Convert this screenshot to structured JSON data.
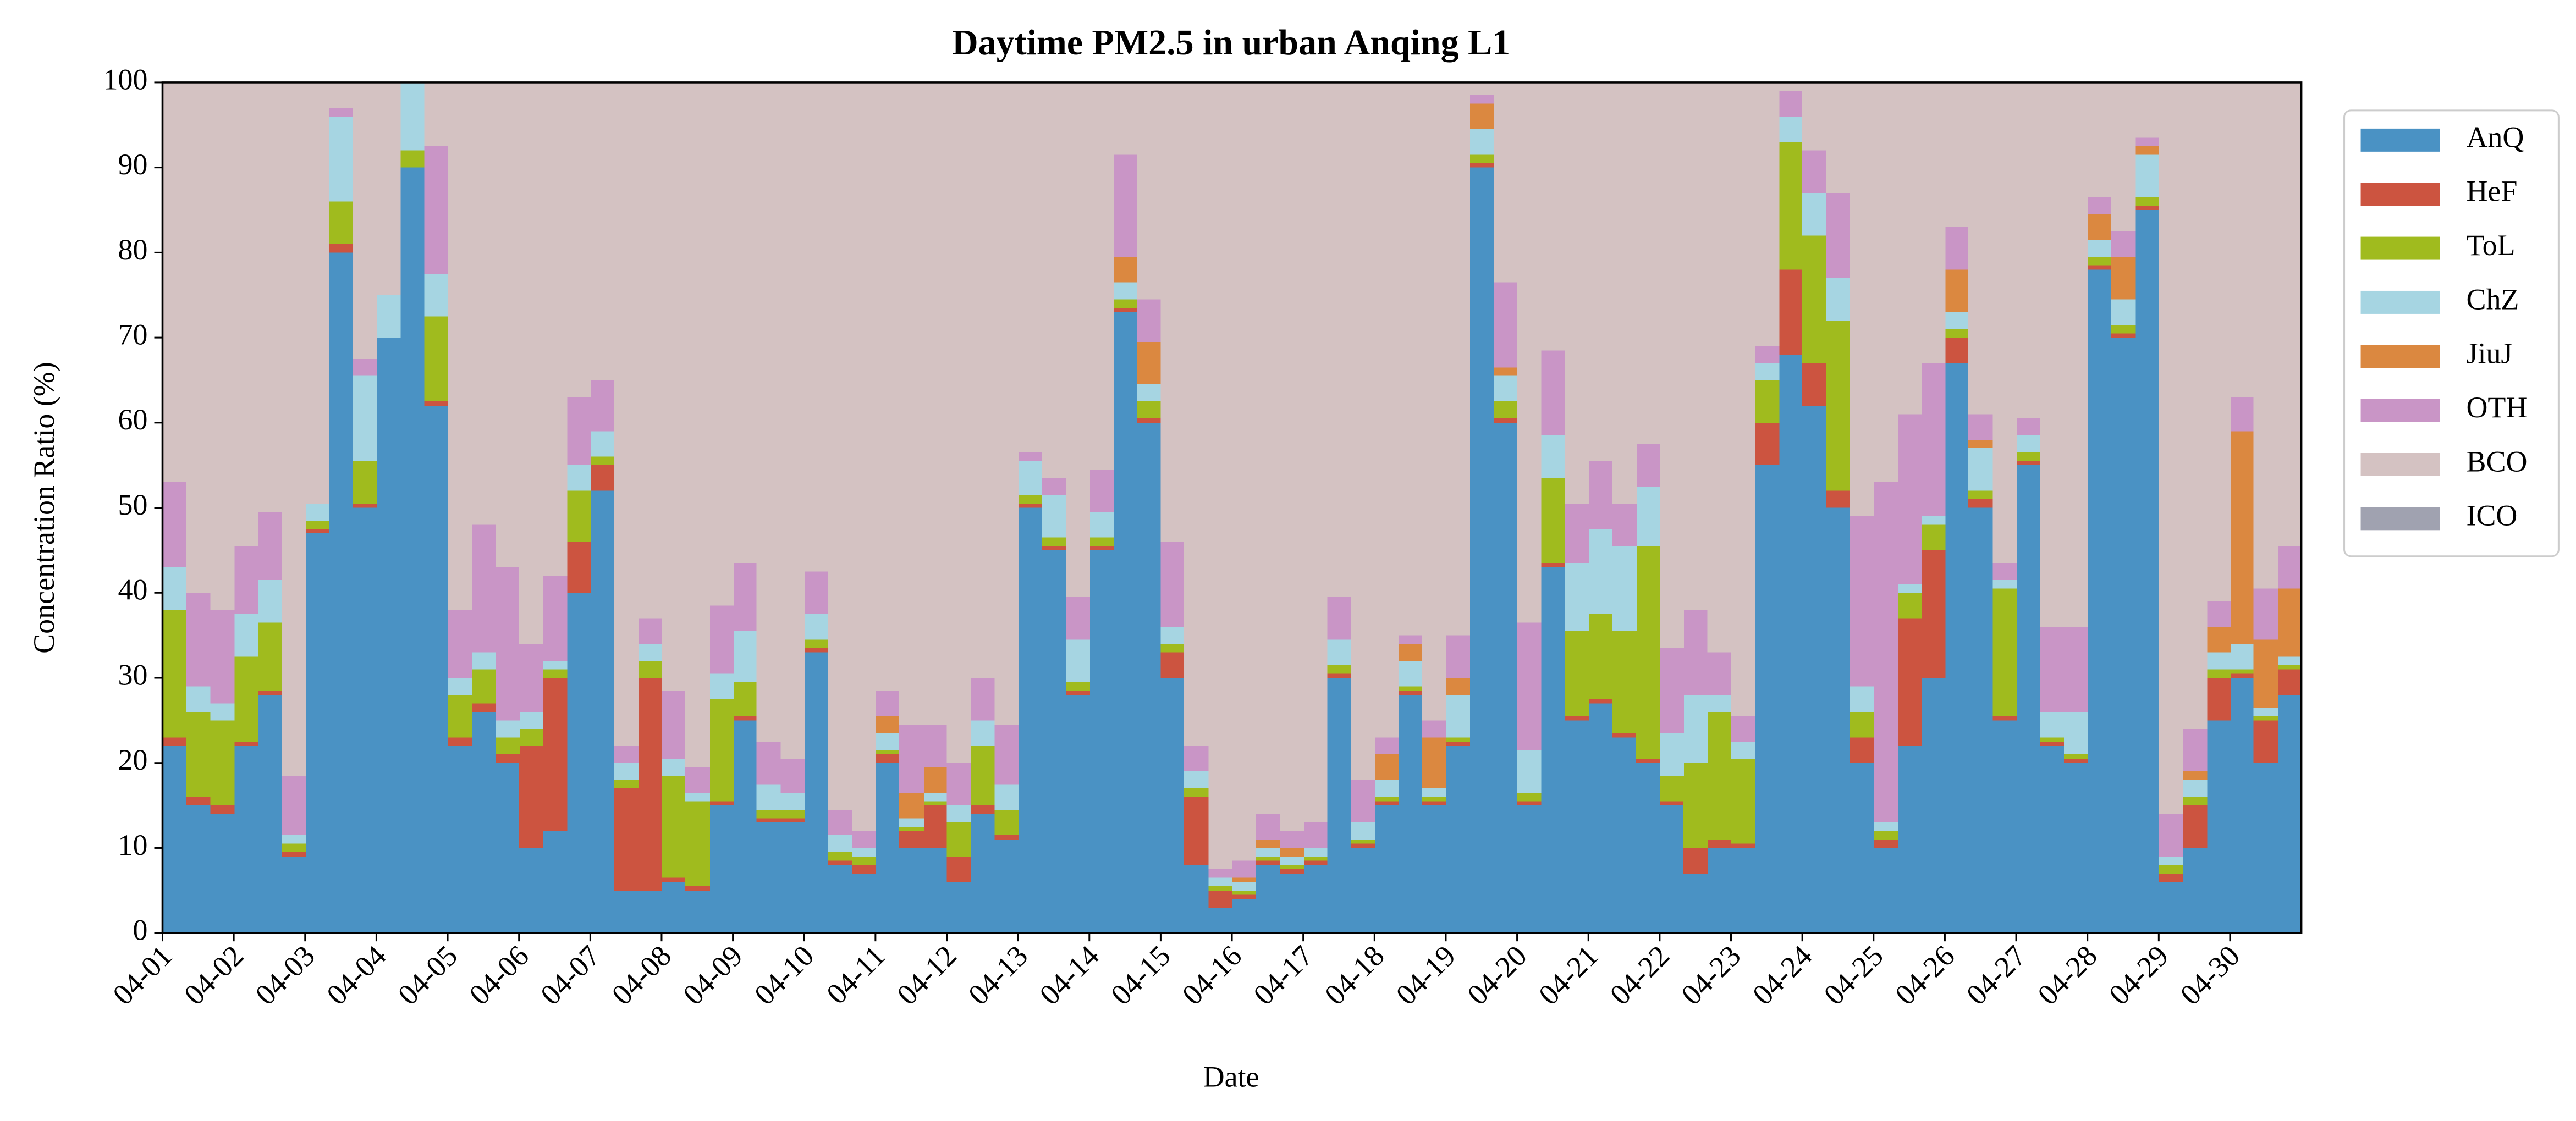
{
  "chart_data": {
    "type": "stacked_step_area",
    "title": "Daytime PM2.5 in urban Anqing L1",
    "xlabel": "Date",
    "ylabel": "Concentration Ratio (%)",
    "xlim": [
      0,
      30
    ],
    "ylim": [
      0,
      100
    ],
    "yticks": [
      0,
      10,
      20,
      30,
      40,
      50,
      60,
      70,
      80,
      90,
      100
    ],
    "xticks": [
      {
        "value": 0,
        "label": "04-01"
      },
      {
        "value": 1,
        "label": "04-02"
      },
      {
        "value": 2,
        "label": "04-03"
      },
      {
        "value": 3,
        "label": "04-04"
      },
      {
        "value": 4,
        "label": "04-05"
      },
      {
        "value": 5,
        "label": "04-06"
      },
      {
        "value": 6,
        "label": "04-07"
      },
      {
        "value": 7,
        "label": "04-08"
      },
      {
        "value": 8,
        "label": "04-09"
      },
      {
        "value": 9,
        "label": "04-10"
      },
      {
        "value": 10,
        "label": "04-11"
      },
      {
        "value": 11,
        "label": "04-12"
      },
      {
        "value": 12,
        "label": "04-13"
      },
      {
        "value": 13,
        "label": "04-14"
      },
      {
        "value": 14,
        "label": "04-15"
      },
      {
        "value": 15,
        "label": "04-16"
      },
      {
        "value": 16,
        "label": "04-17"
      },
      {
        "value": 17,
        "label": "04-18"
      },
      {
        "value": 18,
        "label": "04-19"
      },
      {
        "value": 19,
        "label": "04-20"
      },
      {
        "value": 20,
        "label": "04-21"
      },
      {
        "value": 21,
        "label": "04-22"
      },
      {
        "value": 22,
        "label": "04-23"
      },
      {
        "value": 23,
        "label": "04-24"
      },
      {
        "value": 24,
        "label": "04-25"
      },
      {
        "value": 25,
        "label": "04-26"
      },
      {
        "value": 26,
        "label": "04-27"
      },
      {
        "value": 27,
        "label": "04-28"
      },
      {
        "value": 28,
        "label": "04-29"
      },
      {
        "value": 29,
        "label": "04-30"
      }
    ],
    "legend": "upper right outside",
    "x": [
      0,
      0.33,
      0.67,
      1,
      1.33,
      1.67,
      2,
      2.33,
      2.67,
      3,
      3.33,
      3.67,
      4,
      4.33,
      4.67,
      5,
      5.33,
      5.67,
      6,
      6.33,
      6.67,
      7,
      7.33,
      7.67,
      8,
      8.33,
      8.67,
      9,
      9.33,
      9.67,
      10,
      10.33,
      10.67,
      11,
      11.33,
      11.67,
      12,
      12.33,
      12.67,
      13,
      13.33,
      13.67,
      14,
      14.33,
      14.67,
      15,
      15.33,
      15.67,
      16,
      16.33,
      16.67,
      17,
      17.33,
      17.67,
      18,
      18.33,
      18.67,
      19,
      19.33,
      19.67,
      20,
      20.33,
      20.67,
      21,
      21.33,
      21.67,
      22,
      22.33,
      22.67,
      23,
      23.33,
      23.67,
      24,
      24.33,
      24.67,
      25,
      25.33,
      25.67,
      26,
      26.33,
      26.67,
      27,
      27.33,
      27.67,
      28,
      28.33,
      28.67,
      29,
      29.33,
      29.67
    ],
    "series": [
      {
        "name": "AnQ",
        "color": "#4a92c4",
        "values": [
          22,
          15,
          14,
          22,
          28,
          9,
          47,
          80,
          50,
          70,
          90,
          62,
          22,
          26,
          20,
          10,
          12,
          40,
          52,
          5,
          5,
          6,
          5,
          15,
          25,
          13,
          13,
          33,
          8,
          7,
          20,
          10,
          10,
          6,
          14,
          11,
          50,
          45,
          28,
          45,
          73,
          60,
          30,
          8,
          3,
          4,
          8,
          7,
          8,
          30,
          10,
          15,
          28,
          15,
          22,
          90,
          60,
          15,
          43,
          25,
          27,
          23,
          20,
          15,
          7,
          10,
          10,
          55,
          68,
          62,
          50,
          20,
          10,
          22,
          30,
          67,
          50,
          25,
          55,
          22,
          20,
          78,
          70,
          85,
          6,
          10,
          25,
          30,
          20,
          28
        ]
      },
      {
        "name": "HeF",
        "color": "#cc5440",
        "values": [
          1,
          1,
          1,
          0.5,
          0.5,
          0.5,
          0.5,
          1,
          0.5,
          0,
          0,
          0.5,
          1,
          1,
          1,
          12,
          18,
          6,
          3,
          12,
          25,
          0.5,
          0.5,
          0.5,
          0.5,
          0.5,
          0.5,
          0.5,
          0.5,
          1,
          1,
          2,
          5,
          3,
          1,
          0.5,
          0.5,
          0.5,
          0.5,
          0.5,
          0.5,
          0.5,
          3,
          8,
          2,
          0.5,
          0.5,
          0.5,
          0.5,
          0.5,
          0.5,
          0.5,
          0.5,
          0.5,
          0.5,
          0.5,
          0.5,
          0.5,
          0.5,
          0.5,
          0.5,
          0.5,
          0.5,
          0.5,
          3,
          1,
          0.5,
          5,
          10,
          5,
          2,
          3,
          1,
          15,
          15,
          3,
          1,
          0.5,
          0.5,
          0.5,
          0.5,
          0.5,
          0.5,
          0.5,
          1,
          5,
          5,
          0.5,
          5,
          3
        ]
      },
      {
        "name": "ToL",
        "color": "#a0bb1e",
        "values": [
          15,
          10,
          10,
          10,
          8,
          1,
          1,
          5,
          5,
          0,
          2,
          10,
          5,
          4,
          2,
          2,
          1,
          6,
          1,
          1,
          2,
          12,
          10,
          12,
          4,
          1,
          1,
          1,
          1,
          1,
          0.5,
          0.5,
          0.5,
          4,
          7,
          3,
          1,
          1,
          1,
          1,
          1,
          2,
          1,
          1,
          0.5,
          0.5,
          0.5,
          0.5,
          0.5,
          1,
          0.5,
          0.5,
          0.5,
          0.5,
          0.5,
          1,
          2,
          1,
          10,
          10,
          10,
          12,
          25,
          3,
          10,
          15,
          10,
          5,
          15,
          15,
          20,
          3,
          1,
          3,
          3,
          1,
          1,
          15,
          1,
          0.5,
          0.5,
          1,
          1,
          1,
          1,
          1,
          1,
          0.5,
          0.5,
          0.5
        ]
      },
      {
        "name": "ChZ",
        "color": "#a6d5e2",
        "values": [
          5,
          3,
          2,
          5,
          5,
          1,
          2,
          10,
          10,
          5,
          8,
          5,
          2,
          2,
          2,
          2,
          1,
          3,
          3,
          2,
          2,
          2,
          1,
          3,
          6,
          3,
          2,
          3,
          2,
          1,
          2,
          1,
          1,
          2,
          3,
          3,
          4,
          5,
          5,
          3,
          2,
          2,
          2,
          2,
          1,
          1,
          1,
          1,
          1,
          3,
          2,
          2,
          3,
          1,
          5,
          3,
          3,
          5,
          5,
          8,
          10,
          10,
          7,
          5,
          8,
          2,
          2,
          2,
          3,
          5,
          5,
          3,
          1,
          1,
          1,
          2,
          5,
          1,
          2,
          3,
          5,
          2,
          3,
          5,
          1,
          2,
          2,
          3,
          1,
          1
        ]
      },
      {
        "name": "JiuJ",
        "color": "#db8840",
        "values": [
          0,
          0,
          0,
          0,
          0,
          0,
          0,
          0,
          0,
          0,
          0,
          0,
          0,
          0,
          0,
          0,
          0,
          0,
          0,
          0,
          0,
          0,
          0,
          0,
          0,
          0,
          0,
          0,
          0,
          0,
          2,
          3,
          3,
          0,
          0,
          0,
          0,
          0,
          0,
          0,
          3,
          5,
          0,
          0,
          0,
          0.5,
          1,
          1,
          0,
          0,
          0,
          3,
          2,
          6,
          2,
          3,
          1,
          0,
          0,
          0,
          0,
          0,
          0,
          0,
          0,
          0,
          0,
          0,
          0,
          0,
          0,
          0,
          0,
          0,
          0,
          5,
          1,
          0,
          0,
          0,
          0,
          3,
          5,
          1,
          0,
          1,
          3,
          25,
          8,
          8
        ]
      },
      {
        "name": "OTH",
        "color": "#c995c6",
        "values": [
          10,
          11,
          11,
          8,
          8,
          7,
          0,
          1,
          2,
          0,
          0,
          15,
          8,
          15,
          18,
          8,
          10,
          8,
          6,
          2,
          3,
          8,
          3,
          8,
          8,
          5,
          4,
          5,
          3,
          2,
          3,
          8,
          5,
          5,
          5,
          7,
          1,
          2,
          5,
          5,
          12,
          5,
          10,
          3,
          1,
          2,
          3,
          2,
          3,
          5,
          5,
          2,
          1,
          2,
          5,
          1,
          10,
          15,
          10,
          7,
          8,
          5,
          5,
          10,
          10,
          5,
          3,
          2,
          3,
          5,
          10,
          20,
          40,
          20,
          18,
          5,
          3,
          2,
          2,
          10,
          10,
          2,
          3,
          1,
          5,
          5,
          3,
          4,
          6,
          5
        ]
      },
      {
        "name": "BCO",
        "color": "#d4c2c2",
        "values": [
          47,
          60,
          62,
          54.5,
          50.5,
          81.5,
          49.5,
          3,
          32.5,
          25,
          0,
          7.5,
          62,
          52,
          57,
          66,
          58,
          37,
          35,
          78,
          63,
          71.5,
          80.5,
          61.5,
          56.5,
          77.5,
          79.5,
          57.5,
          85.5,
          88,
          71.5,
          75.5,
          75.5,
          80,
          70,
          75.5,
          43.5,
          46.5,
          60.5,
          45.5,
          8.5,
          25.5,
          54,
          78,
          92.5,
          91.5,
          86,
          88,
          87,
          60.5,
          82,
          77,
          65,
          75,
          65,
          1.5,
          23.5,
          63.5,
          31.5,
          49.5,
          44.5,
          49.5,
          42.5,
          66.5,
          62,
          67,
          74.5,
          31,
          1,
          8,
          13,
          51,
          47,
          39,
          33,
          17,
          39,
          56.5,
          39.5,
          64,
          64,
          13.5,
          17.5,
          6.5,
          86,
          76,
          61,
          37,
          59.5,
          54.5
        ]
      },
      {
        "name": "ICO",
        "color": "#a0a2b0",
        "values": [
          0,
          0,
          0,
          0,
          0,
          0,
          0,
          0,
          0,
          0,
          0,
          0,
          0,
          0,
          0,
          0,
          0,
          0,
          0,
          0,
          0,
          0,
          0,
          0,
          0,
          0,
          0,
          0,
          0,
          0,
          0,
          0,
          0,
          0,
          0,
          0,
          0,
          0,
          0,
          0,
          0,
          0,
          0,
          0,
          0,
          0,
          0,
          0,
          0,
          0,
          0,
          0,
          0,
          0,
          0,
          0,
          0,
          0,
          0,
          0,
          0,
          0,
          0,
          0,
          0,
          0,
          0,
          0,
          0,
          0,
          0,
          0,
          0,
          0,
          0,
          0,
          0,
          0,
          0,
          0,
          0,
          0,
          0,
          0,
          0,
          0,
          0,
          0,
          0,
          0
        ]
      }
    ]
  }
}
